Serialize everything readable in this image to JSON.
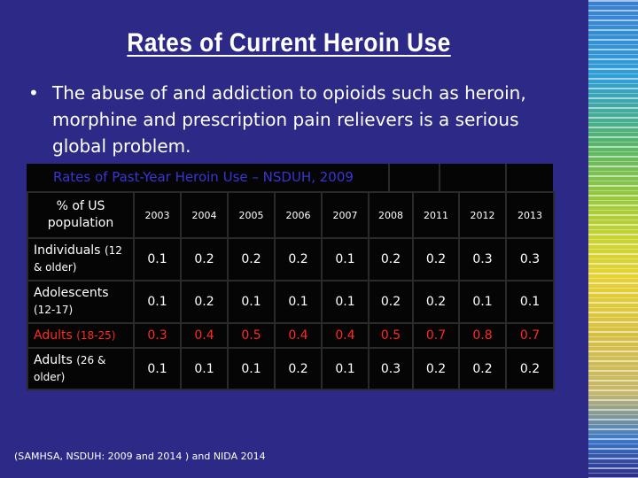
{
  "slide": {
    "title": "Rates of Current Heroin Use",
    "bullet": "The abuse of and addiction to opioids such as heroin, morphine and prescription pain relievers is a serious global problem.",
    "source": "(SAMHSA, NSDUH: 2009 and 2014 ) and NIDA 2014"
  },
  "table": {
    "title": "Rates of Past-Year Heroin Use – NSDUH, 2009",
    "row_header": "% of US population",
    "years": [
      "2003",
      "2004",
      "2005",
      "2006",
      "2007",
      "2008",
      "2011",
      "2012",
      "2013"
    ],
    "rows": [
      {
        "label": "Individuals",
        "sub": "(12 & older)",
        "values": [
          "0.1",
          "0.2",
          "0.2",
          "0.2",
          "0.1",
          "0.2",
          "0.2",
          "0.3",
          "0.3"
        ]
      },
      {
        "label": "Adolescents",
        "sub": "(12-17)",
        "values": [
          "0.1",
          "0.2",
          "0.1",
          "0.1",
          "0.1",
          "0.2",
          "0.2",
          "0.1",
          "0.1"
        ]
      },
      {
        "label": "Adults",
        "sub": "(18-25)",
        "values": [
          "0.3",
          "0.4",
          "0.5",
          "0.4",
          "0.4",
          "0.5",
          "0.7",
          "0.8",
          "0.7"
        ]
      },
      {
        "label": "Adults",
        "sub": "(26 & older)",
        "values": [
          "0.1",
          "0.1",
          "0.1",
          "0.2",
          "0.1",
          "0.3",
          "0.2",
          "0.2",
          "0.2"
        ]
      }
    ]
  },
  "colors": {
    "background": "#2c2a86",
    "table_background": "#050505",
    "table_title": "#3a34d6",
    "highlight_row": "#ff2a20"
  }
}
